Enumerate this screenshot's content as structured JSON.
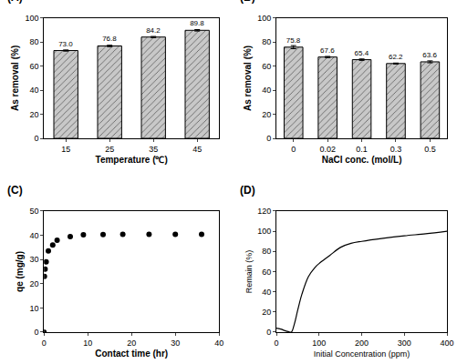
{
  "chart_data": [
    {
      "type": "bar",
      "title": "(A)",
      "x_label": "Temperature (℃)",
      "y_label": "As removal (%)",
      "categories": [
        "15",
        "25",
        "35",
        "45"
      ],
      "values": [
        73.0,
        76.8,
        84.2,
        89.8
      ],
      "value_labels": [
        "73.0",
        "76.8",
        "84.2",
        "89.8"
      ],
      "error": [
        0.5,
        0.6,
        0.5,
        0.6
      ],
      "color": "#c8c8c8",
      "data_labels": true,
      "grid": false,
      "ylim": [
        0,
        100
      ],
      "yticks": [
        0,
        20,
        40,
        60,
        80,
        100
      ]
    },
    {
      "type": "bar",
      "title": "(B)",
      "x_label": "NaCl conc. (mol/L)",
      "y_label": "As removal (%)",
      "categories": [
        "0",
        "0.02",
        "0.1",
        "0.3",
        "0.5"
      ],
      "values": [
        75.8,
        67.6,
        65.4,
        62.2,
        63.6
      ],
      "value_labels": [
        "75.8",
        "67.6",
        "65.4",
        "62.2",
        "63.6"
      ],
      "error": [
        1.3,
        0.5,
        0.6,
        0.4,
        0.8
      ],
      "color": "#c8c8c8",
      "data_labels": true,
      "grid": false,
      "ylim": [
        0,
        100
      ],
      "yticks": [
        0,
        20,
        40,
        60,
        80,
        100
      ]
    },
    {
      "type": "scatter",
      "title": "(C)",
      "x_label": "Contact time (hr)",
      "y_label": "qe (mg/g)",
      "x": [
        0,
        0.1,
        0.25,
        0.5,
        1,
        2,
        3,
        6,
        9,
        13.5,
        18,
        24,
        30,
        36
      ],
      "values": [
        0,
        23,
        26,
        29,
        33.5,
        36,
        38,
        39.5,
        40.2,
        40.3,
        40.4,
        40.4,
        40.4,
        40.4
      ],
      "color": "#000000",
      "marker": "circle",
      "grid": false,
      "xlim": [
        0,
        40
      ],
      "xticks": [
        0,
        10,
        20,
        30,
        40
      ],
      "ylim": [
        0,
        50
      ],
      "yticks": [
        0,
        10,
        20,
        30,
        40,
        50
      ]
    },
    {
      "type": "line",
      "title": "(D)",
      "x_label": "Initial Concentration (ppm)",
      "y_label": "Remain (%)",
      "x": [
        0,
        10,
        20,
        28,
        35,
        42,
        50,
        60,
        75,
        90,
        100,
        125,
        150,
        175,
        200,
        250,
        300,
        350,
        400
      ],
      "values": [
        4,
        3,
        1.5,
        0.5,
        0,
        8,
        22,
        38,
        55,
        64,
        68,
        76,
        84,
        88,
        90,
        93,
        95.5,
        97.5,
        100
      ],
      "color": "#000000",
      "line_style": "solid",
      "grid": false,
      "xlim": [
        0,
        400
      ],
      "xticks": [
        0,
        100,
        200,
        300,
        400
      ],
      "ylim": [
        0,
        120
      ],
      "yticks": [
        0,
        20,
        40,
        60,
        80,
        100,
        120
      ]
    }
  ]
}
